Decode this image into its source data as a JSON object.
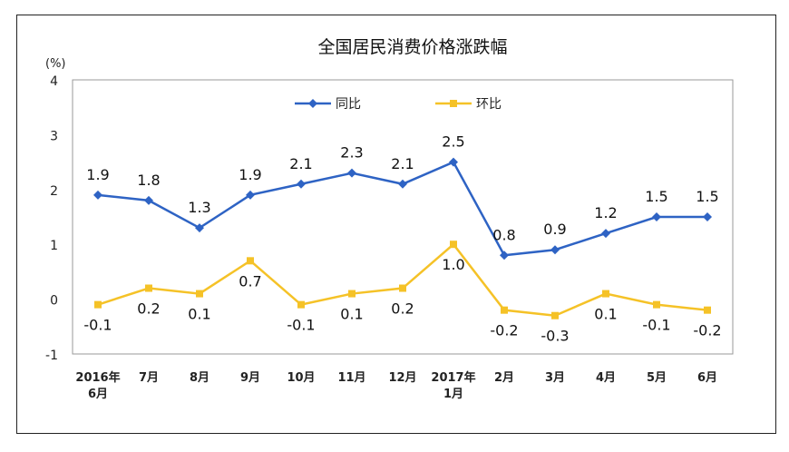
{
  "chart_data": {
    "type": "line",
    "title": "全国居民消费价格涨跌幅",
    "ylabel": "(%)",
    "ylim": [
      -1,
      4
    ],
    "yticks": [
      "4",
      "3",
      "2",
      "1",
      "0",
      "-1"
    ],
    "categories": [
      [
        "2016年",
        "6月"
      ],
      [
        "7月"
      ],
      [
        "8月"
      ],
      [
        "9月"
      ],
      [
        "10月"
      ],
      [
        "11月"
      ],
      [
        "12月"
      ],
      [
        "2017年",
        "1月"
      ],
      [
        "2月"
      ],
      [
        "3月"
      ],
      [
        "4月"
      ],
      [
        "5月"
      ],
      [
        "6月"
      ]
    ],
    "legend_position": "top-center",
    "grid": false,
    "series": [
      {
        "name": "同比",
        "color": "#2e63c4",
        "marker": "diamond",
        "values": [
          1.9,
          1.8,
          1.3,
          1.9,
          2.1,
          2.3,
          2.1,
          2.5,
          0.8,
          0.9,
          1.2,
          1.5,
          1.5
        ],
        "labels": [
          "1.9",
          "1.8",
          "1.3",
          "1.9",
          "2.1",
          "2.3",
          "2.1",
          "2.5",
          "0.8",
          "0.9",
          "1.2",
          "1.5",
          "1.5"
        ]
      },
      {
        "name": "环比",
        "color": "#f5c227",
        "marker": "square",
        "values": [
          -0.1,
          0.2,
          0.1,
          0.7,
          -0.1,
          0.1,
          0.2,
          1.0,
          -0.2,
          -0.3,
          0.1,
          -0.1,
          -0.2
        ],
        "labels": [
          "-0.1",
          "0.2",
          "0.1",
          "0.7",
          "-0.1",
          "0.1",
          "0.2",
          "1.0",
          "-0.2",
          "-0.3",
          "0.1",
          "-0.1",
          "-0.2"
        ]
      }
    ]
  }
}
